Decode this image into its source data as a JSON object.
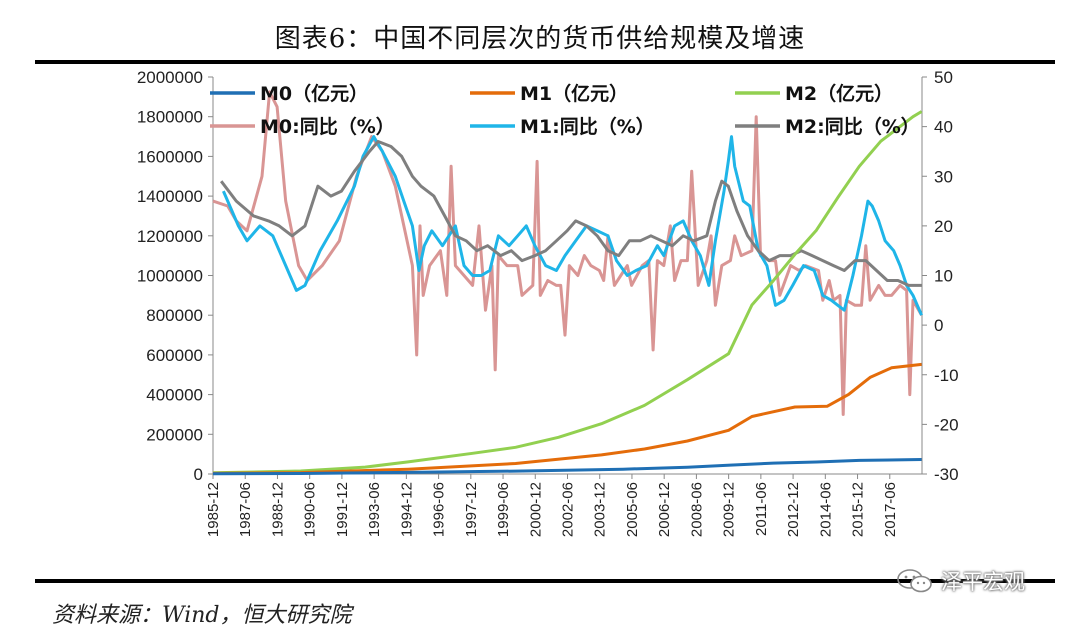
{
  "title": "图表6：中国不同层次的货币供给规模及增速",
  "source": "资料来源：Wind，恒大研究院",
  "watermark": "泽平宏观",
  "chart_data": {
    "type": "line",
    "left_axis": {
      "min": 0,
      "max": 2000000,
      "step": 200000
    },
    "right_axis": {
      "min": -30,
      "max": 50,
      "step": 10
    },
    "x_start_year": 1985.917,
    "x_end_year": 2018.917,
    "x_tick_labels": [
      "1985-12",
      "1987-06",
      "1988-12",
      "1990-06",
      "1991-12",
      "1993-06",
      "1994-12",
      "1996-06",
      "1997-12",
      "1999-06",
      "2000-12",
      "2002-06",
      "2003-12",
      "2005-06",
      "2006-12",
      "2008-06",
      "2009-12",
      "2011-06",
      "2012-12",
      "2014-06",
      "2015-12",
      "2017-06"
    ],
    "series": [
      {
        "name": "M0（亿元）",
        "axis": "left",
        "color": "#1f6fb4",
        "width": 3,
        "points": [
          [
            1985.917,
            988
          ],
          [
            1990,
            2644
          ],
          [
            1995,
            7885
          ],
          [
            2000,
            14653
          ],
          [
            2005,
            24032
          ],
          [
            2008,
            34219
          ],
          [
            2010,
            44628
          ],
          [
            2012,
            54660
          ],
          [
            2014,
            60260
          ],
          [
            2016,
            68304
          ],
          [
            2018.9,
            73000
          ]
        ]
      },
      {
        "name": "M1（亿元）",
        "axis": "left",
        "color": "#e46c0a",
        "width": 3,
        "points": [
          [
            1985.917,
            3000
          ],
          [
            1990,
            7000
          ],
          [
            1995,
            23987
          ],
          [
            2000,
            53147
          ],
          [
            2004,
            95970
          ],
          [
            2006,
            126028
          ],
          [
            2008,
            166217
          ],
          [
            2009.917,
            220002
          ],
          [
            2011,
            289848
          ],
          [
            2013,
            337291
          ],
          [
            2014.5,
            341000
          ],
          [
            2015.5,
            400953
          ],
          [
            2016.5,
            486557
          ],
          [
            2017.5,
            535000
          ],
          [
            2018.9,
            552000
          ]
        ]
      },
      {
        "name": "M2（亿元）",
        "axis": "left",
        "color": "#92d050",
        "width": 3,
        "points": [
          [
            1985.917,
            6000
          ],
          [
            1990,
            15293
          ],
          [
            1993,
            34879
          ],
          [
            1995,
            60750
          ],
          [
            1998,
            104498
          ],
          [
            2000,
            134610
          ],
          [
            2002,
            185007
          ],
          [
            2004,
            253207
          ],
          [
            2006,
            345603
          ],
          [
            2008,
            475166
          ],
          [
            2009.917,
            606225
          ],
          [
            2011,
            851590
          ],
          [
            2012,
            974159
          ],
          [
            2013,
            1106525
          ],
          [
            2014,
            1228375
          ],
          [
            2015,
            1392278
          ],
          [
            2016,
            1550067
          ],
          [
            2017,
            1676800
          ],
          [
            2018.5,
            1800000
          ],
          [
            2018.9,
            1826000
          ]
        ]
      },
      {
        "name": "M0:同比（%）",
        "axis": "right",
        "color": "#d99594",
        "width": 3,
        "points": [
          [
            1985.917,
            25
          ],
          [
            1986.6,
            24
          ],
          [
            1987,
            21
          ],
          [
            1987.5,
            19
          ],
          [
            1988.2,
            30
          ],
          [
            1988.55,
            47
          ],
          [
            1988.9,
            44
          ],
          [
            1989.3,
            25
          ],
          [
            1989.9,
            12
          ],
          [
            1990.3,
            9
          ],
          [
            1991,
            12
          ],
          [
            1991.8,
            17
          ],
          [
            1992.6,
            30
          ],
          [
            1993.3,
            38
          ],
          [
            1993.8,
            35
          ],
          [
            1994.4,
            28
          ],
          [
            1995.2,
            12
          ],
          [
            1995.4,
            -6
          ],
          [
            1995.55,
            20
          ],
          [
            1995.7,
            6
          ],
          [
            1996,
            12
          ],
          [
            1996.5,
            15
          ],
          [
            1996.8,
            6
          ],
          [
            1997,
            32
          ],
          [
            1997.2,
            12
          ],
          [
            1997.6,
            10
          ],
          [
            1998,
            8
          ],
          [
            1998.3,
            20
          ],
          [
            1998.6,
            3
          ],
          [
            1998.9,
            12
          ],
          [
            1999.05,
            -9
          ],
          [
            1999.2,
            14
          ],
          [
            1999.6,
            12
          ],
          [
            2000.1,
            12
          ],
          [
            2000.3,
            6
          ],
          [
            2000.8,
            8
          ],
          [
            2001,
            33
          ],
          [
            2001.15,
            6
          ],
          [
            2001.5,
            9
          ],
          [
            2001.9,
            8
          ],
          [
            2002.1,
            8
          ],
          [
            2002.3,
            -2
          ],
          [
            2002.5,
            12
          ],
          [
            2002.9,
            10
          ],
          [
            2003.2,
            14
          ],
          [
            2003.5,
            12
          ],
          [
            2003.9,
            11
          ],
          [
            2004.1,
            9
          ],
          [
            2004.3,
            18
          ],
          [
            2004.6,
            8
          ],
          [
            2004.9,
            10
          ],
          [
            2005.2,
            12
          ],
          [
            2005.4,
            8
          ],
          [
            2005.9,
            12
          ],
          [
            2006.2,
            13
          ],
          [
            2006.4,
            -5
          ],
          [
            2006.6,
            13
          ],
          [
            2006.9,
            12
          ],
          [
            2007.2,
            20
          ],
          [
            2007.4,
            9
          ],
          [
            2007.7,
            13
          ],
          [
            2008,
            13
          ],
          [
            2008.2,
            31
          ],
          [
            2008.5,
            8
          ],
          [
            2008.9,
            13
          ],
          [
            2009.1,
            18
          ],
          [
            2009.3,
            4
          ],
          [
            2009.6,
            12
          ],
          [
            2010,
            13
          ],
          [
            2010.2,
            18
          ],
          [
            2010.5,
            14
          ],
          [
            2011.0,
            15
          ],
          [
            2011.2,
            42
          ],
          [
            2011.4,
            14
          ],
          [
            2011.8,
            13
          ],
          [
            2012.1,
            13
          ],
          [
            2012.3,
            6
          ],
          [
            2012.8,
            12
          ],
          [
            2013.2,
            11
          ],
          [
            2013.5,
            12
          ],
          [
            2014.1,
            11
          ],
          [
            2014.3,
            5
          ],
          [
            2014.6,
            9
          ],
          [
            2014.8,
            5
          ],
          [
            2015.1,
            6
          ],
          [
            2015.25,
            -18
          ],
          [
            2015.4,
            5
          ],
          [
            2015.8,
            4
          ],
          [
            2016.1,
            4
          ],
          [
            2016.3,
            16
          ],
          [
            2016.5,
            5
          ],
          [
            2016.9,
            8
          ],
          [
            2017.2,
            6
          ],
          [
            2017.5,
            6
          ],
          [
            2017.9,
            8
          ],
          [
            2018.2,
            7
          ],
          [
            2018.35,
            -14
          ],
          [
            2018.5,
            5
          ],
          [
            2018.9,
            2
          ]
        ]
      },
      {
        "name": "M1:同比（%）",
        "axis": "right",
        "color": "#1fb5e8",
        "width": 3,
        "points": [
          [
            1986.4,
            27
          ],
          [
            1987.1,
            20
          ],
          [
            1987.5,
            17
          ],
          [
            1988.1,
            20
          ],
          [
            1988.7,
            18
          ],
          [
            1989.3,
            12
          ],
          [
            1989.8,
            7
          ],
          [
            1990.2,
            8
          ],
          [
            1990.9,
            15
          ],
          [
            1991.7,
            21
          ],
          [
            1992.5,
            28
          ],
          [
            1992.9,
            34
          ],
          [
            1993.4,
            38
          ],
          [
            1993.8,
            35
          ],
          [
            1994.4,
            30
          ],
          [
            1994.8,
            25
          ],
          [
            1995.2,
            20
          ],
          [
            1995.5,
            11
          ],
          [
            1995.75,
            16
          ],
          [
            1996.1,
            19
          ],
          [
            1996.6,
            16
          ],
          [
            1997.2,
            20
          ],
          [
            1997.6,
            12
          ],
          [
            1998,
            10
          ],
          [
            1998.4,
            10
          ],
          [
            1998.8,
            11
          ],
          [
            1999.2,
            18
          ],
          [
            1999.7,
            16
          ],
          [
            2000.1,
            18
          ],
          [
            2000.5,
            20
          ],
          [
            2000.9,
            16
          ],
          [
            2001.4,
            12
          ],
          [
            2001.9,
            11
          ],
          [
            2002.3,
            14
          ],
          [
            2002.8,
            17
          ],
          [
            2003.3,
            20
          ],
          [
            2003.8,
            19
          ],
          [
            2004.3,
            18
          ],
          [
            2004.7,
            13
          ],
          [
            2005.2,
            10
          ],
          [
            2005.6,
            11
          ],
          [
            2006.1,
            12
          ],
          [
            2006.6,
            16
          ],
          [
            2006.9,
            14
          ],
          [
            2007.4,
            20
          ],
          [
            2007.8,
            21
          ],
          [
            2008.2,
            17
          ],
          [
            2008.6,
            14
          ],
          [
            2009.0,
            8
          ],
          [
            2009.3,
            17
          ],
          [
            2009.7,
            27
          ],
          [
            2009.9,
            33
          ],
          [
            2010.05,
            38
          ],
          [
            2010.2,
            32
          ],
          [
            2010.6,
            25
          ],
          [
            2010.9,
            24
          ],
          [
            2011.3,
            15
          ],
          [
            2011.7,
            12
          ],
          [
            2012.1,
            4
          ],
          [
            2012.5,
            5
          ],
          [
            2012.9,
            8
          ],
          [
            2013.4,
            12
          ],
          [
            2013.9,
            11
          ],
          [
            2014.3,
            6
          ],
          [
            2014.7,
            5
          ],
          [
            2015.0,
            4
          ],
          [
            2015.3,
            3
          ],
          [
            2015.7,
            10
          ],
          [
            2016.1,
            18
          ],
          [
            2016.4,
            25
          ],
          [
            2016.6,
            24
          ],
          [
            2016.9,
            21
          ],
          [
            2017.2,
            17
          ],
          [
            2017.6,
            15
          ],
          [
            2017.9,
            12
          ],
          [
            2018.2,
            8
          ],
          [
            2018.5,
            6
          ],
          [
            2018.9,
            2
          ]
        ]
      },
      {
        "name": "M2:同比（%）",
        "axis": "right",
        "color": "#7f7f7f",
        "width": 3,
        "points": [
          [
            1986.3,
            29
          ],
          [
            1987,
            25
          ],
          [
            1987.8,
            22
          ],
          [
            1988.5,
            21
          ],
          [
            1989.0,
            20
          ],
          [
            1989.6,
            18
          ],
          [
            1990.2,
            20
          ],
          [
            1990.8,
            28
          ],
          [
            1991.4,
            26
          ],
          [
            1991.9,
            27
          ],
          [
            1992.5,
            31
          ],
          [
            1993.2,
            35
          ],
          [
            1993.6,
            37
          ],
          [
            1994.2,
            36
          ],
          [
            1994.7,
            34
          ],
          [
            1995.2,
            30
          ],
          [
            1995.6,
            28
          ],
          [
            1996.2,
            26
          ],
          [
            1996.7,
            22
          ],
          [
            1997.2,
            18
          ],
          [
            1997.7,
            17
          ],
          [
            1998.2,
            15
          ],
          [
            1998.7,
            16
          ],
          [
            1999.3,
            14
          ],
          [
            1999.8,
            15
          ],
          [
            2000.3,
            13
          ],
          [
            2000.9,
            14
          ],
          [
            2001.4,
            15
          ],
          [
            2001.9,
            17
          ],
          [
            2002.4,
            19
          ],
          [
            2002.8,
            21
          ],
          [
            2003.3,
            20
          ],
          [
            2003.8,
            18
          ],
          [
            2004.3,
            15
          ],
          [
            2004.8,
            14
          ],
          [
            2005.3,
            17
          ],
          [
            2005.8,
            17
          ],
          [
            2006.3,
            18
          ],
          [
            2006.8,
            17
          ],
          [
            2007.3,
            16
          ],
          [
            2007.8,
            18
          ],
          [
            2008.3,
            17
          ],
          [
            2008.9,
            18
          ],
          [
            2009.3,
            25
          ],
          [
            2009.6,
            29
          ],
          [
            2009.9,
            28
          ],
          [
            2010.3,
            23
          ],
          [
            2010.8,
            18
          ],
          [
            2011.3,
            15
          ],
          [
            2011.8,
            13
          ],
          [
            2012.3,
            14
          ],
          [
            2012.8,
            14
          ],
          [
            2013.3,
            15
          ],
          [
            2013.8,
            14
          ],
          [
            2014.3,
            13
          ],
          [
            2014.8,
            12
          ],
          [
            2015.3,
            11
          ],
          [
            2015.8,
            13
          ],
          [
            2016.3,
            13
          ],
          [
            2016.8,
            11
          ],
          [
            2017.3,
            9
          ],
          [
            2017.8,
            9
          ],
          [
            2018.3,
            8
          ],
          [
            2018.9,
            8
          ]
        ]
      }
    ]
  }
}
